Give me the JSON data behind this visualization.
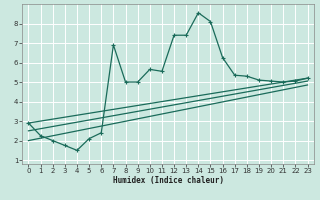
{
  "title": "",
  "xlabel": "Humidex (Indice chaleur)",
  "bg_color": "#cce8e0",
  "grid_color": "#ffffff",
  "line_color": "#1a6b5a",
  "xlim": [
    -0.5,
    23.5
  ],
  "ylim": [
    0.8,
    9.0
  ],
  "xticks": [
    0,
    1,
    2,
    3,
    4,
    5,
    6,
    7,
    8,
    9,
    10,
    11,
    12,
    13,
    14,
    15,
    16,
    17,
    18,
    19,
    20,
    21,
    22,
    23
  ],
  "yticks": [
    1,
    2,
    3,
    4,
    5,
    6,
    7,
    8
  ],
  "line_main": {
    "x": [
      0,
      1,
      2,
      3,
      4,
      5,
      6,
      7,
      8,
      9,
      10,
      11,
      12,
      13,
      14,
      15,
      16,
      17,
      18,
      19,
      20,
      21,
      22,
      23
    ],
    "y": [
      2.9,
      2.25,
      2.0,
      1.75,
      1.5,
      2.1,
      2.4,
      6.9,
      5.0,
      5.0,
      5.65,
      5.55,
      7.4,
      7.4,
      8.55,
      8.1,
      6.25,
      5.35,
      5.3,
      5.1,
      5.05,
      5.0,
      5.05,
      5.2
    ]
  },
  "line_straight1": {
    "x": [
      0,
      23
    ],
    "y": [
      2.9,
      5.2
    ]
  },
  "line_straight2": {
    "x": [
      0,
      23
    ],
    "y": [
      2.5,
      5.05
    ]
  },
  "line_straight3": {
    "x": [
      0,
      23
    ],
    "y": [
      2.0,
      4.85
    ]
  }
}
